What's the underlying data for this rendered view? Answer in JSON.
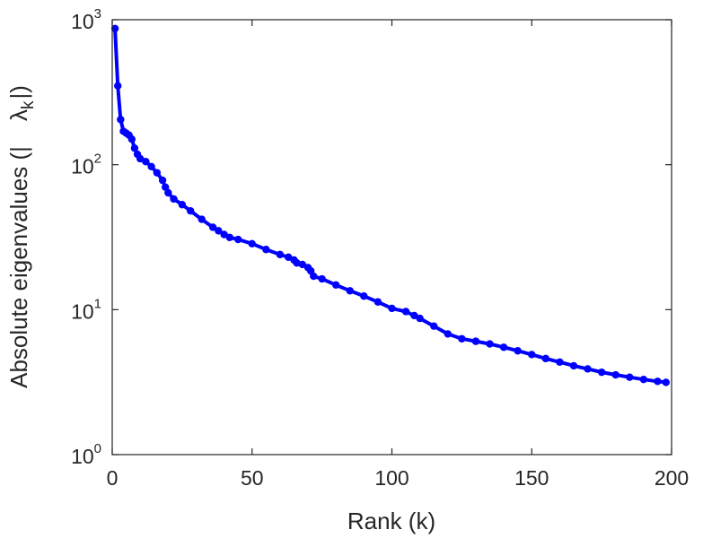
{
  "chart_data": {
    "type": "line",
    "title": "",
    "xlabel": "Rank (k)",
    "ylabel": "Absolute eigenvalues (|λk|)",
    "ylabel_parts": {
      "prefix": "Absolute eigenvalues (|",
      "symbol": "λ",
      "subscript": "k",
      "suffix": "|)"
    },
    "xlim": [
      0,
      200
    ],
    "ylim": [
      1,
      1000
    ],
    "yscale": "log",
    "grid": false,
    "legend": "none",
    "x_ticks": [
      "0",
      "50",
      "100",
      "150",
      "200"
    ],
    "x_tick_values": [
      0,
      50,
      100,
      150,
      200
    ],
    "y_ticks": [
      {
        "base": "10",
        "exp": "0",
        "value": 1
      },
      {
        "base": "10",
        "exp": "1",
        "value": 10
      },
      {
        "base": "10",
        "exp": "2",
        "value": 100
      },
      {
        "base": "10",
        "exp": "3",
        "value": 1000
      }
    ],
    "series": [
      {
        "color": "#0000ff",
        "marker": "circle",
        "points": [
          [
            1,
            870
          ],
          [
            2,
            350
          ],
          [
            3,
            205
          ],
          [
            4,
            170
          ],
          [
            5,
            165
          ],
          [
            6,
            160
          ],
          [
            7,
            150
          ],
          [
            8,
            130
          ],
          [
            9,
            118
          ],
          [
            10,
            110
          ],
          [
            12,
            105
          ],
          [
            14,
            97
          ],
          [
            16,
            88
          ],
          [
            18,
            78
          ],
          [
            19,
            70
          ],
          [
            20,
            64
          ],
          [
            22,
            58
          ],
          [
            25,
            53
          ],
          [
            28,
            48
          ],
          [
            32,
            42
          ],
          [
            36,
            37
          ],
          [
            38,
            35
          ],
          [
            40,
            33
          ],
          [
            42,
            31.5
          ],
          [
            45,
            30.5
          ],
          [
            50,
            28.5
          ],
          [
            55,
            26
          ],
          [
            60,
            24
          ],
          [
            63,
            23
          ],
          [
            65,
            22
          ],
          [
            66,
            21
          ],
          [
            68,
            20.5
          ],
          [
            70,
            19.5
          ],
          [
            71,
            18.5
          ],
          [
            72,
            17
          ],
          [
            75,
            16.3
          ],
          [
            80,
            14.8
          ],
          [
            85,
            13.5
          ],
          [
            90,
            12.4
          ],
          [
            95,
            11.3
          ],
          [
            100,
            10.2
          ],
          [
            105,
            9.7
          ],
          [
            108,
            9.1
          ],
          [
            110,
            8.7
          ],
          [
            115,
            7.7
          ],
          [
            120,
            6.8
          ],
          [
            125,
            6.3
          ],
          [
            130,
            6.05
          ],
          [
            135,
            5.8
          ],
          [
            140,
            5.5
          ],
          [
            145,
            5.2
          ],
          [
            150,
            4.9
          ],
          [
            155,
            4.6
          ],
          [
            160,
            4.35
          ],
          [
            165,
            4.1
          ],
          [
            170,
            3.9
          ],
          [
            175,
            3.7
          ],
          [
            180,
            3.55
          ],
          [
            185,
            3.42
          ],
          [
            190,
            3.3
          ],
          [
            195,
            3.2
          ],
          [
            198,
            3.15
          ]
        ]
      }
    ]
  }
}
